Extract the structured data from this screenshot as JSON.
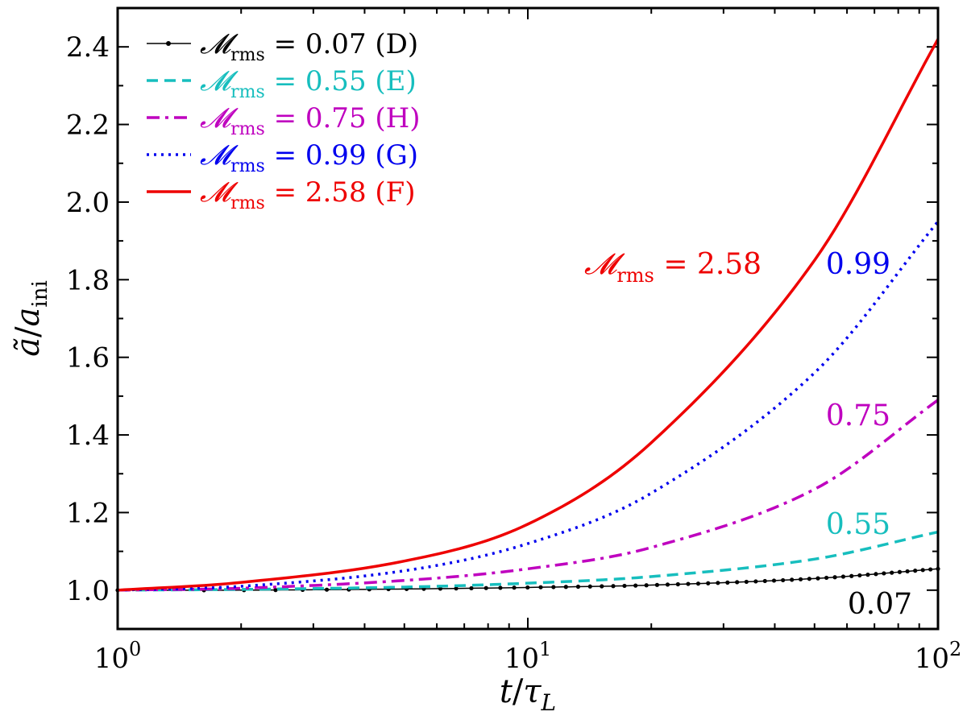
{
  "chart_data": {
    "type": "line",
    "title": "",
    "x_scale": "log",
    "xlim": [
      1,
      100
    ],
    "ylim": [
      0.9,
      2.5
    ],
    "xlabel": {
      "base": "t",
      "sep": "/",
      "denom": "τ",
      "denom_sub": "L"
    },
    "ylabel": {
      "base": "ã",
      "sep": "/",
      "denom": "a",
      "denom_sub": "ini"
    },
    "x_ticks": [
      {
        "value": 1,
        "base": "10",
        "exp": "0"
      },
      {
        "value": 10,
        "base": "10",
        "exp": "1"
      },
      {
        "value": 100,
        "base": "10",
        "exp": "2"
      }
    ],
    "y_ticks": [
      {
        "value": 1.0,
        "label": "1.0"
      },
      {
        "value": 1.2,
        "label": "1.2"
      },
      {
        "value": 1.4,
        "label": "1.4"
      },
      {
        "value": 1.6,
        "label": "1.6"
      },
      {
        "value": 1.8,
        "label": "1.8"
      },
      {
        "value": 2.0,
        "label": "2.0"
      },
      {
        "value": 2.2,
        "label": "2.2"
      },
      {
        "value": 2.4,
        "label": "2.4"
      }
    ],
    "legend_position": "top-left",
    "series": [
      {
        "name": "D",
        "symbol": "𝓜",
        "sub": "rms",
        "legend_value": "= 0.07 (D)",
        "mach": "0.07",
        "color": "#000000",
        "style": "solid-dots",
        "x": [
          1,
          2,
          5,
          10,
          20,
          50,
          100
        ],
        "y": [
          1.0,
          1.0,
          1.003,
          1.007,
          1.013,
          1.03,
          1.055
        ]
      },
      {
        "name": "E",
        "symbol": "𝓜",
        "sub": "rms",
        "legend_value": "= 0.55 (E)",
        "mach": "0.55",
        "color": "#17bebe",
        "style": "dashed",
        "x": [
          1,
          2,
          5,
          10,
          20,
          50,
          100
        ],
        "y": [
          1.0,
          1.002,
          1.008,
          1.018,
          1.035,
          1.08,
          1.15
        ]
      },
      {
        "name": "H",
        "symbol": "𝓜",
        "sub": "rms",
        "legend_value": "= 0.75 (H)",
        "mach": "0.75",
        "color": "#bf00bf",
        "style": "dashdot",
        "x": [
          1,
          2,
          5,
          10,
          20,
          50,
          100
        ],
        "y": [
          1.0,
          1.005,
          1.025,
          1.055,
          1.11,
          1.26,
          1.49
        ]
      },
      {
        "name": "G",
        "symbol": "𝓜",
        "sub": "rms",
        "legend_value": "= 0.99 (G)",
        "mach": "0.99",
        "color": "#0000ee",
        "style": "dotted",
        "x": [
          1,
          2,
          5,
          10,
          20,
          50,
          100
        ],
        "y": [
          1.0,
          1.01,
          1.05,
          1.12,
          1.25,
          1.56,
          1.95
        ]
      },
      {
        "name": "F",
        "symbol": "𝓜",
        "sub": "rms",
        "legend_value": "= 2.58 (F)",
        "mach": "2.58",
        "color": "#ee0000",
        "style": "solid",
        "x": [
          1,
          2,
          5,
          10,
          20,
          50,
          100
        ],
        "y": [
          1.0,
          1.02,
          1.075,
          1.17,
          1.38,
          1.85,
          2.42
        ]
      }
    ],
    "annotations": {
      "F": {
        "symbol": "𝓜",
        "sub": "rms",
        "text": "= 2.58"
      },
      "G": {
        "text": "0.99"
      },
      "H": {
        "text": "0.75"
      },
      "E": {
        "text": "0.55"
      },
      "D": {
        "text": "0.07"
      }
    }
  }
}
